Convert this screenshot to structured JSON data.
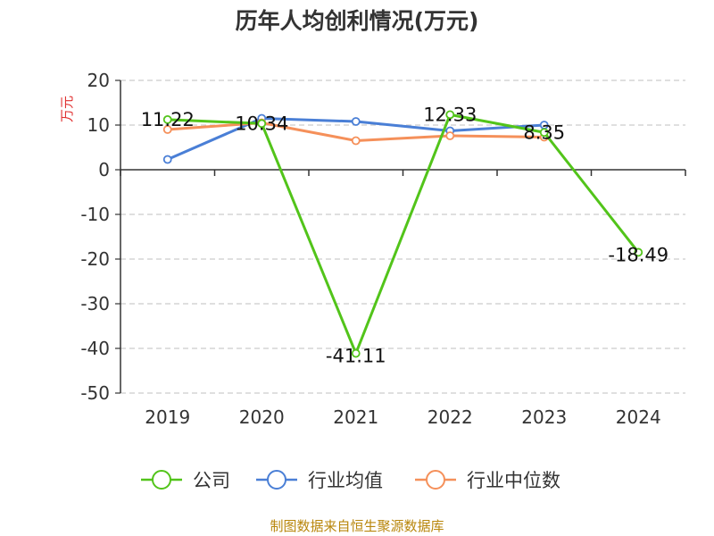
{
  "chart_data": {
    "type": "line",
    "title": "历年人均创利情况(万元)",
    "ylabel": "万元",
    "xlabel": "",
    "categories": [
      "2019",
      "2020",
      "2021",
      "2022",
      "2023",
      "2024"
    ],
    "ylim": [
      -50,
      20
    ],
    "yticks": [
      20,
      10,
      0,
      -10,
      -20,
      -30,
      -40,
      -50
    ],
    "grid": true,
    "legend_position": "bottom",
    "series": [
      {
        "name": "公司",
        "color": "#52c41a",
        "values": [
          11.22,
          10.34,
          -41.11,
          12.33,
          8.35,
          -18.49
        ],
        "labels": [
          "11.22",
          "10.34",
          "-41.11",
          "12.33",
          "8.35",
          "-18.49"
        ]
      },
      {
        "name": "行业均值",
        "color": "#4a7fd6",
        "values": [
          2.3,
          11.5,
          10.8,
          8.7,
          10.0,
          null
        ],
        "labels": []
      },
      {
        "name": "行业中位数",
        "color": "#f5905a",
        "values": [
          9.0,
          10.5,
          6.5,
          7.6,
          7.3,
          null
        ],
        "labels": []
      }
    ]
  },
  "source": "制图数据来自恒生聚源数据库"
}
